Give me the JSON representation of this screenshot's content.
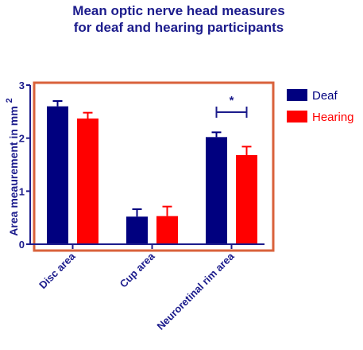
{
  "colors": {
    "title": "#1c1c8c",
    "deaf": "#00007f",
    "hearing": "#ff0000",
    "frame": "#d9623b",
    "axis": "#1c1c8c"
  },
  "chart_data": {
    "type": "bar",
    "title": [
      "Mean optic nerve head measures",
      "for deaf and hearing participants"
    ],
    "ylabel": "Area meaurement in mm",
    "ylabel_superscript": "2",
    "ylim": [
      0,
      3
    ],
    "yticks": [
      "0",
      "1",
      "2",
      "3"
    ],
    "categories": [
      "Disc area",
      "Cup area",
      "Neuroretinal rim area"
    ],
    "series": [
      {
        "name": "Deaf",
        "color": "#00007f",
        "values": [
          2.6,
          0.52,
          2.02
        ],
        "errors": [
          0.1,
          0.14,
          0.09
        ]
      },
      {
        "name": "Hearing",
        "color": "#ff0000",
        "values": [
          2.37,
          0.53,
          1.68
        ],
        "errors": [
          0.11,
          0.18,
          0.16
        ]
      }
    ],
    "significance": {
      "label": "*",
      "category_index": 2
    },
    "legend_position": "right"
  }
}
